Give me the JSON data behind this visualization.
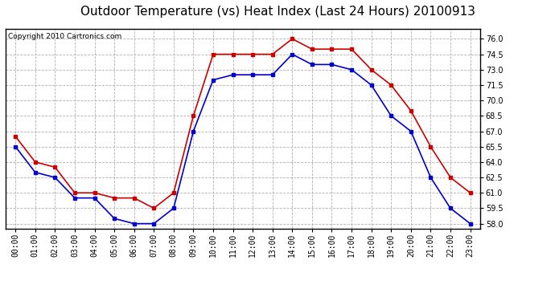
{
  "title": "Outdoor Temperature (vs) Heat Index (Last 24 Hours) 20100913",
  "copyright": "Copyright 2010 Cartronics.com",
  "x_labels": [
    "00:00",
    "01:00",
    "02:00",
    "03:00",
    "04:00",
    "05:00",
    "06:00",
    "07:00",
    "08:00",
    "09:00",
    "10:00",
    "11:00",
    "12:00",
    "13:00",
    "14:00",
    "15:00",
    "16:00",
    "17:00",
    "18:00",
    "19:00",
    "20:00",
    "21:00",
    "22:00",
    "23:00"
  ],
  "temp_blue": [
    65.5,
    63.0,
    62.5,
    60.5,
    60.5,
    58.5,
    58.0,
    58.0,
    59.5,
    67.0,
    72.0,
    72.5,
    72.5,
    72.5,
    74.5,
    73.5,
    73.5,
    73.0,
    71.5,
    68.5,
    67.0,
    62.5,
    59.5,
    58.0
  ],
  "heat_red": [
    66.5,
    64.0,
    63.5,
    61.0,
    61.0,
    60.5,
    60.5,
    59.5,
    61.0,
    68.5,
    74.5,
    74.5,
    74.5,
    74.5,
    76.0,
    75.0,
    75.0,
    75.0,
    73.0,
    71.5,
    69.0,
    65.5,
    62.5,
    61.0
  ],
  "ylim": [
    57.5,
    77.0
  ],
  "yticks": [
    58.0,
    59.5,
    61.0,
    62.5,
    64.0,
    65.5,
    67.0,
    68.5,
    70.0,
    71.5,
    73.0,
    74.5,
    76.0
  ],
  "blue_color": "#0000cc",
  "red_color": "#cc0000",
  "bg_color": "#ffffff",
  "grid_color": "#b0b0b0",
  "title_fontsize": 11,
  "copyright_fontsize": 6.5,
  "tick_fontsize": 7
}
